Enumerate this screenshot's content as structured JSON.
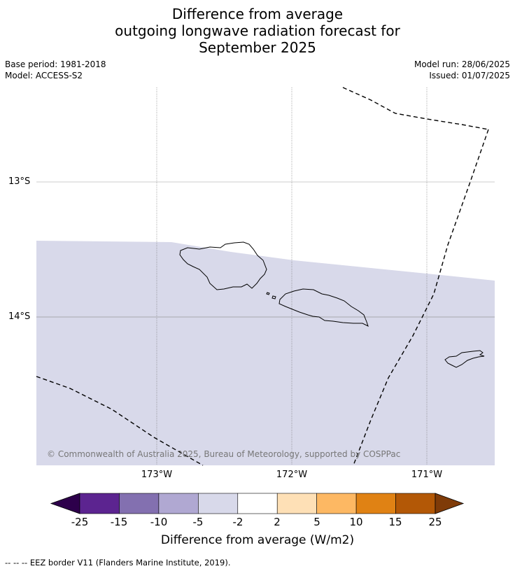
{
  "header": {
    "title_lines": [
      "Difference from average",
      "outgoing longwave radiation forecast for",
      "September 2025"
    ],
    "base_period": "Base period: 1981-2018",
    "model": "Model: ACCESS-S2",
    "model_run": "Model run: 28/06/2025",
    "issued": "Issued: 01/07/2025"
  },
  "map": {
    "lat_labels": [
      "13°S",
      "14°S"
    ],
    "lon_labels": [
      "173°W",
      "172°W",
      "171°W"
    ],
    "credit": "© Commonwealth of Australia 2025, Bureau of Meteorology, supported by COSPPac",
    "fill_color": "#d8d9ea"
  },
  "colorbar": {
    "label": "Difference from average (W/m2)",
    "ticks": [
      "-25",
      "-15",
      "-10",
      "-5",
      "-2",
      "2",
      "5",
      "10",
      "15",
      "25"
    ],
    "colors": [
      "#5c2490",
      "#8370b0",
      "#b0a8d2",
      "#d8d9ea",
      "#ffffff",
      "#fee0b6",
      "#fdb863",
      "#e08214",
      "#b35806"
    ],
    "under_color": "#2d004b",
    "over_color": "#7f3b08"
  },
  "footer": {
    "legend": "--  --  -- EEZ border V11 (Flanders Marine Institute, 2019)."
  }
}
